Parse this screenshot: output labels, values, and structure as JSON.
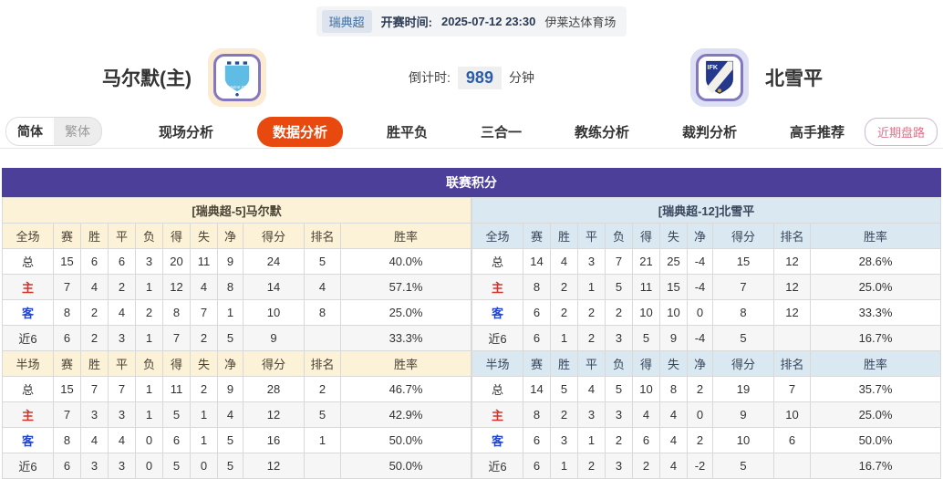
{
  "top_bar": {
    "league": "瑞典超",
    "kickoff_label": "开赛时间:",
    "kickoff_time": "2025-07-12 23:30",
    "venue": "伊莱达体育场"
  },
  "match_header": {
    "home_team": "马尔默(主)",
    "away_team": "北雪平",
    "home_logo_name": "malmo-ff-crest",
    "away_logo_name": "ifk-norrkoping-crest",
    "away_logo_text": "IFK",
    "countdown_label": "倒计时:",
    "countdown_value": "989",
    "countdown_unit": "分钟"
  },
  "lang_toggle": {
    "options": [
      {
        "label": "简体",
        "active": true
      },
      {
        "label": "繁体",
        "active": false
      }
    ]
  },
  "tabs": [
    {
      "label": "现场分析",
      "active": false
    },
    {
      "label": "数据分析",
      "active": true
    },
    {
      "label": "胜平负",
      "active": false
    },
    {
      "label": "三合一",
      "active": false
    },
    {
      "label": "教练分析",
      "active": false
    },
    {
      "label": "裁判分析",
      "active": false
    },
    {
      "label": "高手推荐",
      "active": false
    }
  ],
  "recent_button": "近期盘路",
  "table": {
    "title": "联赛积分",
    "stat_columns": [
      "赛",
      "胜",
      "平",
      "负",
      "得",
      "失",
      "净",
      "得分",
      "排名",
      "胜率"
    ],
    "teams": [
      {
        "side": "left",
        "header": "[瑞典超-5]马尔默",
        "sections": [
          {
            "scope": "全场",
            "rows": [
              {
                "label": "总",
                "values": [
                  "15",
                  "6",
                  "6",
                  "3",
                  "20",
                  "11",
                  "9",
                  "24",
                  "5",
                  "40.0%"
                ]
              },
              {
                "label": "主",
                "values": [
                  "7",
                  "4",
                  "2",
                  "1",
                  "12",
                  "4",
                  "8",
                  "14",
                  "4",
                  "57.1%"
                ]
              },
              {
                "label": "客",
                "values": [
                  "8",
                  "2",
                  "4",
                  "2",
                  "8",
                  "7",
                  "1",
                  "10",
                  "8",
                  "25.0%"
                ]
              },
              {
                "label": "近6",
                "values": [
                  "6",
                  "2",
                  "3",
                  "1",
                  "7",
                  "2",
                  "5",
                  "9",
                  "",
                  "33.3%"
                ]
              }
            ]
          },
          {
            "scope": "半场",
            "rows": [
              {
                "label": "总",
                "values": [
                  "15",
                  "7",
                  "7",
                  "1",
                  "11",
                  "2",
                  "9",
                  "28",
                  "2",
                  "46.7%"
                ]
              },
              {
                "label": "主",
                "values": [
                  "7",
                  "3",
                  "3",
                  "1",
                  "5",
                  "1",
                  "4",
                  "12",
                  "5",
                  "42.9%"
                ]
              },
              {
                "label": "客",
                "values": [
                  "8",
                  "4",
                  "4",
                  "0",
                  "6",
                  "1",
                  "5",
                  "16",
                  "1",
                  "50.0%"
                ]
              },
              {
                "label": "近6",
                "values": [
                  "6",
                  "3",
                  "3",
                  "0",
                  "5",
                  "0",
                  "5",
                  "12",
                  "",
                  "50.0%"
                ]
              }
            ]
          }
        ]
      },
      {
        "side": "right",
        "header": "[瑞典超-12]北雪平",
        "sections": [
          {
            "scope": "全场",
            "rows": [
              {
                "label": "总",
                "values": [
                  "14",
                  "4",
                  "3",
                  "7",
                  "21",
                  "25",
                  "-4",
                  "15",
                  "12",
                  "28.6%"
                ]
              },
              {
                "label": "主",
                "values": [
                  "8",
                  "2",
                  "1",
                  "5",
                  "11",
                  "15",
                  "-4",
                  "7",
                  "12",
                  "25.0%"
                ]
              },
              {
                "label": "客",
                "values": [
                  "6",
                  "2",
                  "2",
                  "2",
                  "10",
                  "10",
                  "0",
                  "8",
                  "12",
                  "33.3%"
                ]
              },
              {
                "label": "近6",
                "values": [
                  "6",
                  "1",
                  "2",
                  "3",
                  "5",
                  "9",
                  "-4",
                  "5",
                  "",
                  "16.7%"
                ]
              }
            ]
          },
          {
            "scope": "半场",
            "rows": [
              {
                "label": "总",
                "values": [
                  "14",
                  "5",
                  "4",
                  "5",
                  "10",
                  "8",
                  "2",
                  "19",
                  "7",
                  "35.7%"
                ]
              },
              {
                "label": "主",
                "values": [
                  "8",
                  "2",
                  "3",
                  "3",
                  "4",
                  "4",
                  "0",
                  "9",
                  "10",
                  "25.0%"
                ]
              },
              {
                "label": "客",
                "values": [
                  "6",
                  "3",
                  "1",
                  "2",
                  "6",
                  "4",
                  "2",
                  "10",
                  "6",
                  "50.0%"
                ]
              },
              {
                "label": "近6",
                "values": [
                  "6",
                  "1",
                  "2",
                  "3",
                  "2",
                  "4",
                  "-2",
                  "5",
                  "",
                  "16.7%"
                ]
              }
            ]
          }
        ]
      }
    ]
  },
  "colors": {
    "panel_purple": "#4b3f99",
    "active_tab_orange": "#e8490f",
    "left_theme_cream": "#fcf2d8",
    "right_theme_blue": "#dae8f2",
    "home_row_red": "#d0342c",
    "away_row_blue": "#2244cc",
    "countdown_blue": "#2a5caa",
    "malmo_blue": "#5fbce4",
    "norrkoping_blue": "#24388e"
  }
}
